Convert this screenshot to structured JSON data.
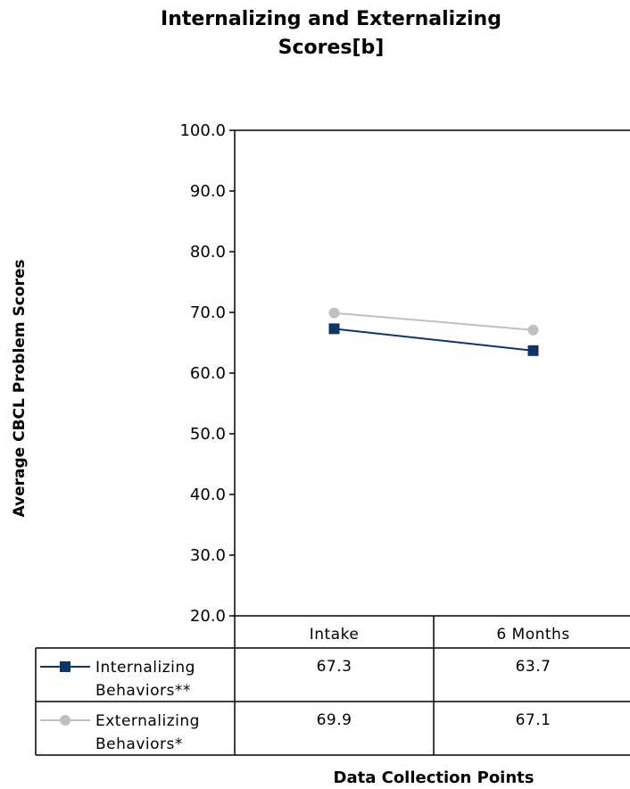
{
  "chart_data": {
    "type": "line",
    "title": "Internalizing and Externalizing\nScores[b]",
    "xlabel": "Data Collection Points",
    "ylabel": "Average CBCL Problem Scores",
    "categories": [
      "Intake",
      "6 Months"
    ],
    "ylim": [
      20.0,
      100.0
    ],
    "yticks": [
      "100.0",
      "90.0",
      "80.0",
      "70.0",
      "60.0",
      "50.0",
      "40.0",
      "30.0",
      "20.0"
    ],
    "series": [
      {
        "name": "Internalizing Behaviors**",
        "label_lines": [
          "Internalizing",
          "Behaviors**"
        ],
        "values": [
          67.3,
          63.7
        ],
        "value_labels": [
          "67.3",
          "63.7"
        ],
        "color": "#0f3566",
        "marker": "square"
      },
      {
        "name": "Externalizing Behaviors*",
        "label_lines": [
          "Externalizing",
          "Behaviors*"
        ],
        "values": [
          69.9,
          67.1
        ],
        "value_labels": [
          "69.9",
          "67.1"
        ],
        "color": "#c0c0c0",
        "marker": "circle"
      }
    ],
    "grid": false,
    "legend": "data-table-below"
  }
}
